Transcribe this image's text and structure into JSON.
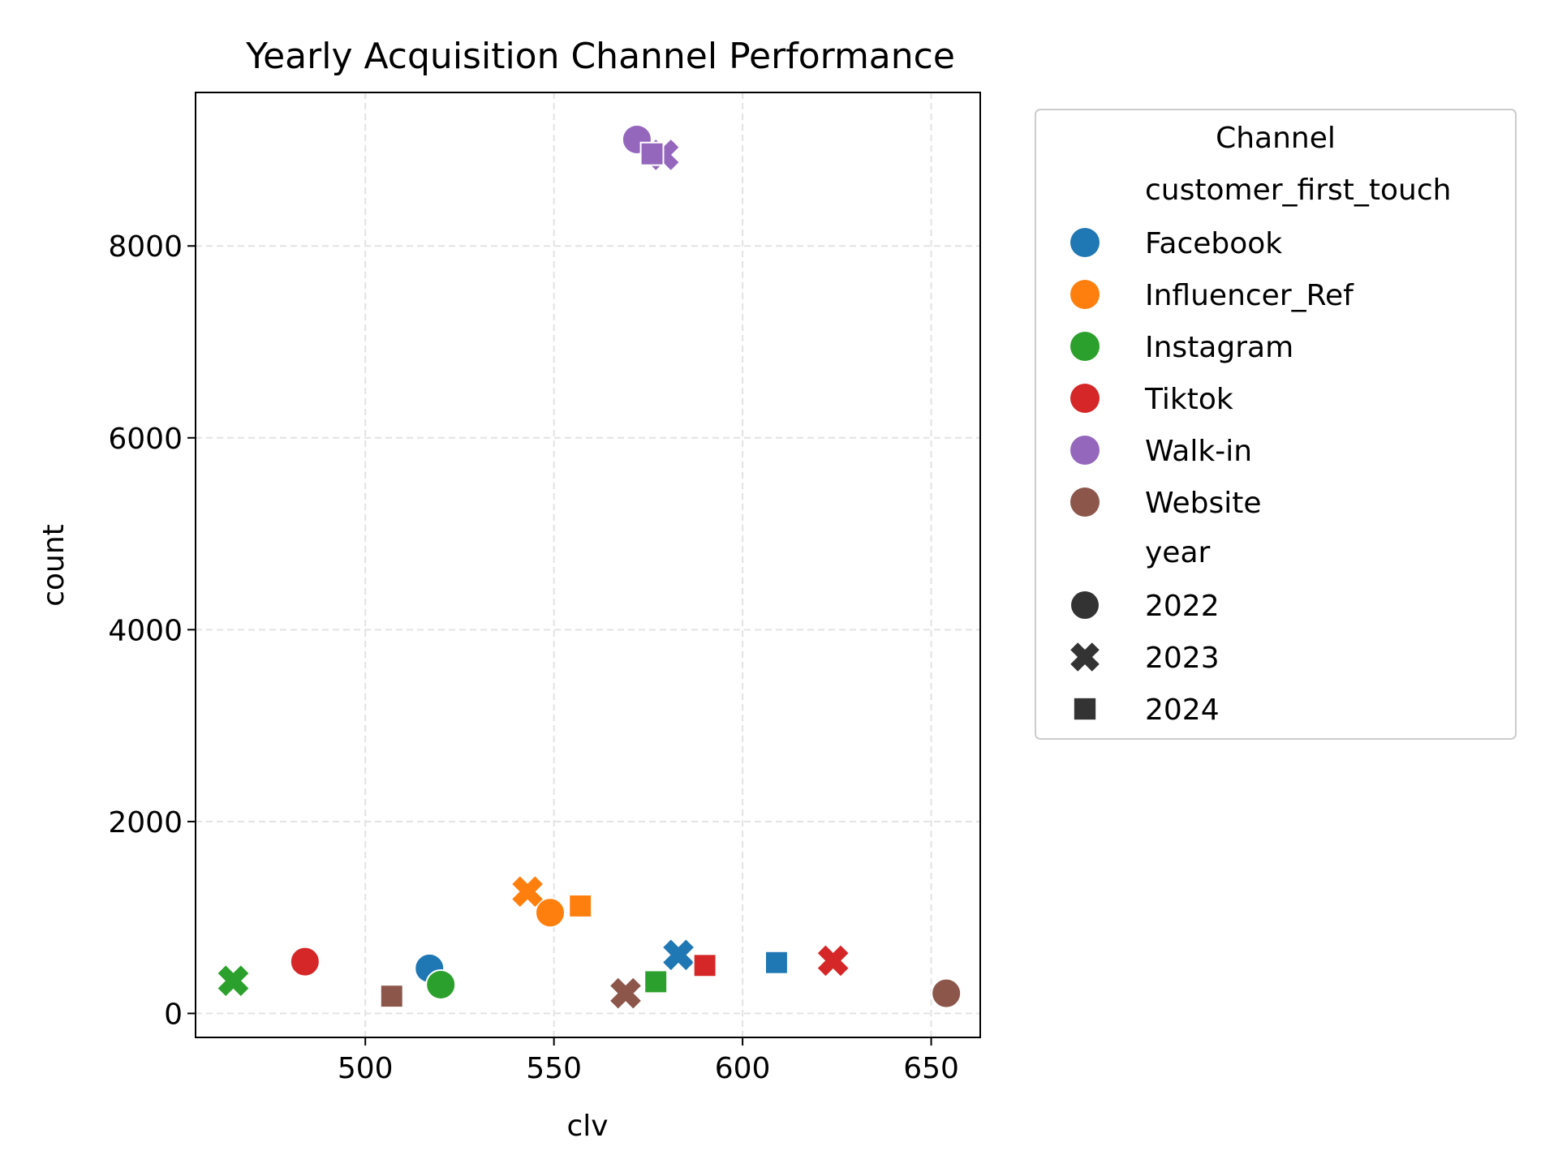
{
  "chart_data": {
    "type": "scatter",
    "title": "Yearly Acquisition Channel Performance",
    "xlabel": "clv",
    "ylabel": "count",
    "xlim": [
      455,
      663
    ],
    "ylim": [
      -250,
      9600
    ],
    "xticks": [
      500,
      550,
      600,
      650
    ],
    "yticks": [
      0,
      2000,
      4000,
      6000,
      8000
    ],
    "grid": true,
    "legend": {
      "position": "outside-right",
      "title": "Channel",
      "hue_heading": "customer_first_touch",
      "style_heading": "year",
      "channels": [
        {
          "name": "Facebook",
          "color": "#1f77b4"
        },
        {
          "name": "Influencer_Ref",
          "color": "#ff7f0e"
        },
        {
          "name": "Instagram",
          "color": "#2ca02c"
        },
        {
          "name": "Tiktok",
          "color": "#d62728"
        },
        {
          "name": "Walk-in",
          "color": "#9467bd"
        },
        {
          "name": "Website",
          "color": "#8c564b"
        }
      ],
      "years": [
        {
          "name": "2022",
          "marker": "circle"
        },
        {
          "name": "2023",
          "marker": "x"
        },
        {
          "name": "2024",
          "marker": "square"
        }
      ]
    },
    "points": [
      {
        "channel": "Facebook",
        "year": "2022",
        "x": 517,
        "y": 470
      },
      {
        "channel": "Facebook",
        "year": "2023",
        "x": 583,
        "y": 610
      },
      {
        "channel": "Facebook",
        "year": "2024",
        "x": 609,
        "y": 530
      },
      {
        "channel": "Influencer_Ref",
        "year": "2022",
        "x": 549,
        "y": 1050
      },
      {
        "channel": "Influencer_Ref",
        "year": "2023",
        "x": 543,
        "y": 1270
      },
      {
        "channel": "Influencer_Ref",
        "year": "2024",
        "x": 557,
        "y": 1120
      },
      {
        "channel": "Instagram",
        "year": "2022",
        "x": 520,
        "y": 300
      },
      {
        "channel": "Instagram",
        "year": "2023",
        "x": 465,
        "y": 340
      },
      {
        "channel": "Instagram",
        "year": "2024",
        "x": 577,
        "y": 330
      },
      {
        "channel": "Tiktok",
        "year": "2022",
        "x": 484,
        "y": 540
      },
      {
        "channel": "Tiktok",
        "year": "2023",
        "x": 624,
        "y": 550
      },
      {
        "channel": "Tiktok",
        "year": "2024",
        "x": 590,
        "y": 500
      },
      {
        "channel": "Walk-in",
        "year": "2022",
        "x": 572,
        "y": 9110
      },
      {
        "channel": "Walk-in",
        "year": "2023",
        "x": 579,
        "y": 8950
      },
      {
        "channel": "Walk-in",
        "year": "2024",
        "x": 576,
        "y": 8960
      },
      {
        "channel": "Website",
        "year": "2022",
        "x": 654,
        "y": 210
      },
      {
        "channel": "Website",
        "year": "2023",
        "x": 569,
        "y": 210
      },
      {
        "channel": "Website",
        "year": "2024",
        "x": 507,
        "y": 180
      }
    ]
  }
}
